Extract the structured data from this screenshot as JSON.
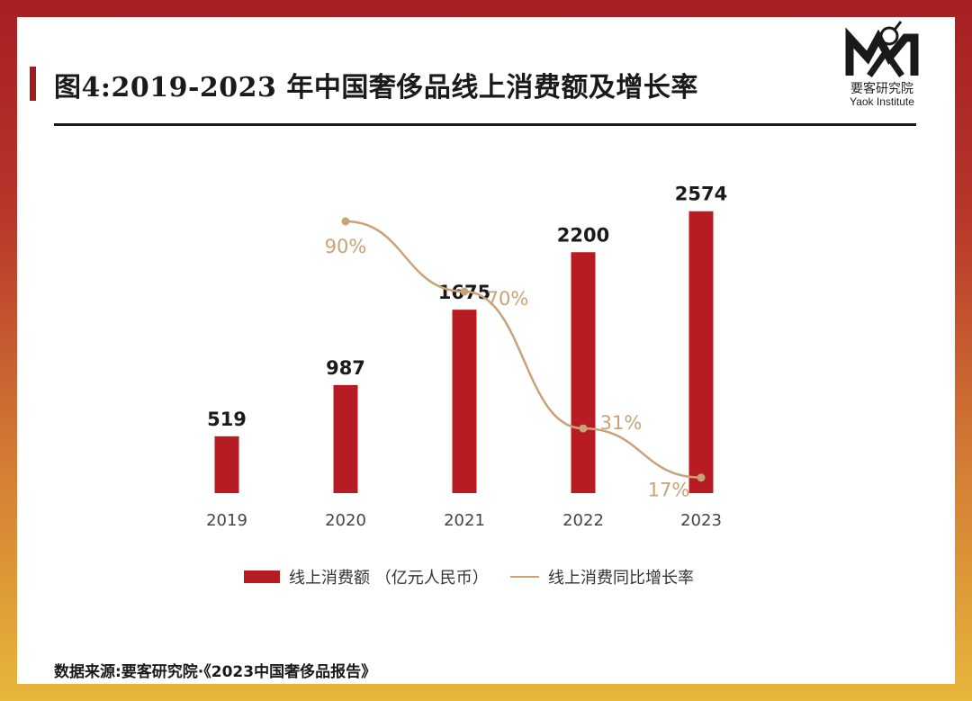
{
  "title": "图4:2019-2023 年中国奢侈品线上消费额及增长率",
  "logo": {
    "name_cn": "要客研究院",
    "name_en": "Yaok Institute"
  },
  "source": "数据来源:要客研究院·《2023中国奢侈品报告》",
  "colors": {
    "bar": "#b71c22",
    "line": "#c9a27a",
    "frame_top": "#a61f22",
    "frame_bottom": "#e8b63a"
  },
  "chart_data": {
    "type": "bar",
    "categories": [
      "2019",
      "2020",
      "2021",
      "2022",
      "2023"
    ],
    "series": [
      {
        "name": "线上消费额 （亿元人民币）",
        "type": "bar",
        "values": [
          519,
          987,
          1675,
          2200,
          2574
        ],
        "labels": [
          "519",
          "987",
          "1675",
          "2200",
          "2574"
        ]
      },
      {
        "name": "线上消费同比增长率",
        "type": "line",
        "x": [
          "2020",
          "2021",
          "2022",
          "2023"
        ],
        "values": [
          90,
          70,
          31,
          17
        ],
        "labels": [
          "90%",
          "70%",
          "31%",
          "17%"
        ]
      }
    ],
    "legend_position": "bottom"
  }
}
